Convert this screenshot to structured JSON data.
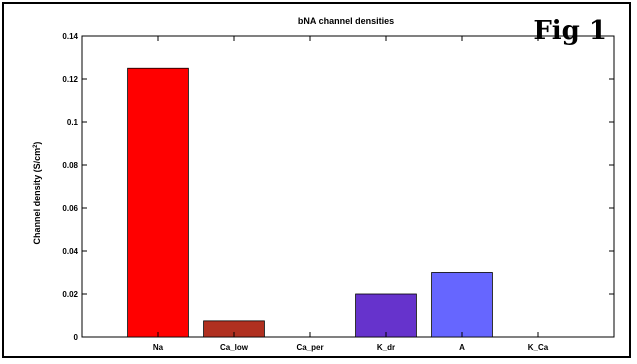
{
  "figure_label": "Fig 1",
  "chart_data": {
    "type": "bar",
    "title": "bNA channel densities",
    "xlabel": "",
    "ylabel": "Channel density (S/cm",
    "ylabel_sup": "2",
    "ylabel_end": ")",
    "categories": [
      "Na",
      "Ca_low",
      "Ca_per",
      "K_dr",
      "A",
      "K_Ca"
    ],
    "values": [
      0.125,
      0.0075,
      0.0,
      0.02,
      0.03,
      0.0
    ],
    "colors": [
      "#ff0000",
      "#b03020",
      "#b03020",
      "#6633cc",
      "#6666ff",
      "#6666ff"
    ],
    "ylim": [
      0,
      0.14
    ],
    "yticks": [
      0,
      0.02,
      0.04,
      0.06,
      0.08,
      0.1,
      0.12,
      0.14
    ],
    "ytick_labels": [
      "0",
      "0.02",
      "0.04",
      "0.06",
      "0.08",
      "0.1",
      "0.12",
      "0.14"
    ],
    "grid": false
  }
}
